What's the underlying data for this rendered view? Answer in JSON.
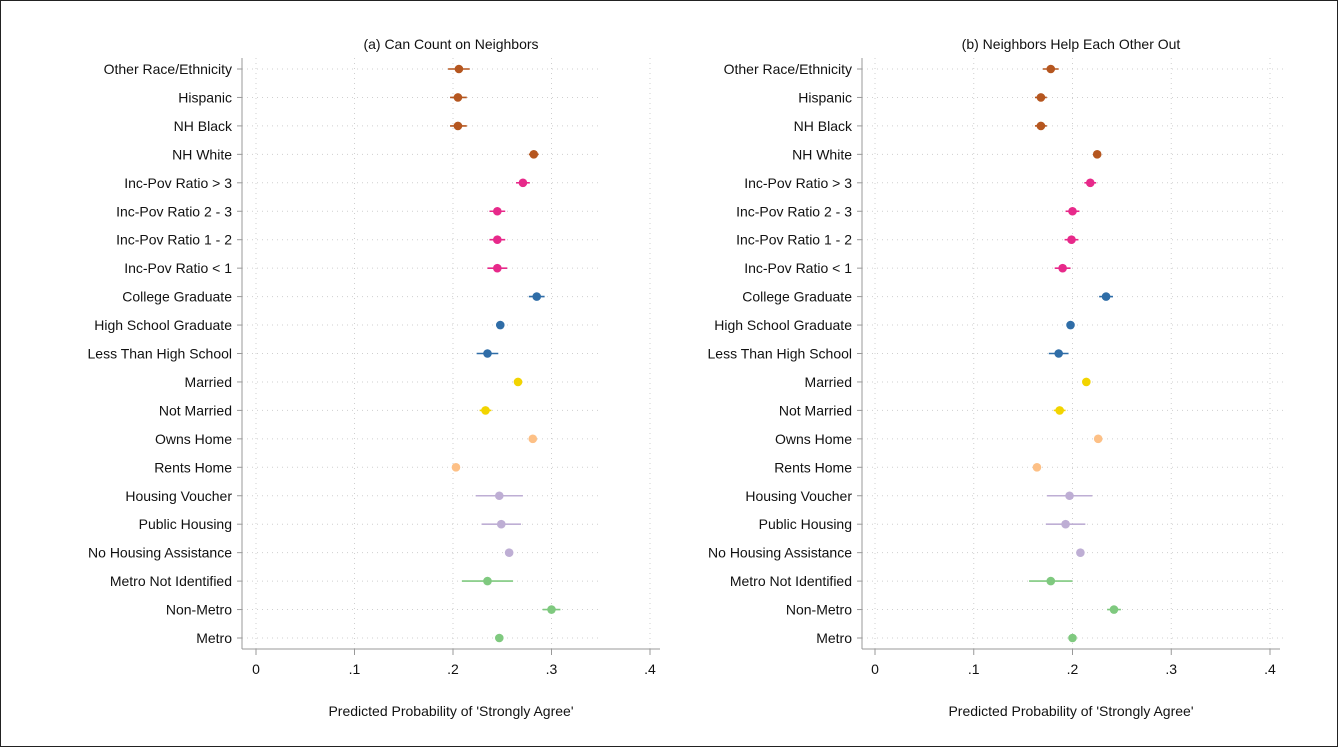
{
  "chart_data": [
    {
      "type": "scatter",
      "title": "(a) Can Count on Neighbors",
      "xlabel": "Predicted Probability of 'Strongly Agree'",
      "ylabel": "",
      "xlim": [
        0,
        0.4
      ],
      "xticks": [
        0,
        0.1,
        0.2,
        0.3,
        0.4
      ],
      "xtick_labels": [
        "0",
        ".1",
        ".2",
        ".3",
        ".4"
      ],
      "grid": true,
      "categories": [
        "Other Race/Ethnicity",
        "Hispanic",
        "NH Black",
        "NH White",
        "Inc-Pov Ratio > 3",
        "Inc-Pov Ratio 2 - 3",
        "Inc-Pov Ratio 1 - 2",
        "Inc-Pov Ratio < 1",
        "College Graduate",
        "High School Graduate",
        "Less Than High School",
        "Married",
        "Not Married",
        "Owns Home",
        "Rents Home",
        "Housing Voucher",
        "Public Housing",
        "No Housing Assistance",
        "Metro Not Identified",
        "Non-Metro",
        "Metro"
      ],
      "values": [
        0.206,
        0.205,
        0.205,
        0.282,
        0.271,
        0.245,
        0.245,
        0.245,
        0.285,
        0.248,
        0.235,
        0.266,
        0.233,
        0.281,
        0.203,
        0.247,
        0.249,
        0.257,
        0.235,
        0.3,
        0.247
      ],
      "ci_low": [
        0.195,
        0.197,
        0.197,
        0.277,
        0.264,
        0.237,
        0.237,
        0.235,
        0.277,
        0.244,
        0.224,
        0.263,
        0.227,
        0.277,
        0.199,
        0.223,
        0.229,
        0.253,
        0.209,
        0.291,
        0.243
      ],
      "ci_high": [
        0.217,
        0.214,
        0.214,
        0.287,
        0.278,
        0.253,
        0.253,
        0.255,
        0.293,
        0.252,
        0.246,
        0.269,
        0.239,
        0.285,
        0.207,
        0.271,
        0.269,
        0.261,
        0.261,
        0.309,
        0.251
      ],
      "point_colors": [
        "#b5561f",
        "#b5561f",
        "#b5561f",
        "#b5561f",
        "#e7298a",
        "#e7298a",
        "#e7298a",
        "#e7298a",
        "#2f6da7",
        "#2f6da7",
        "#2f6da7",
        "#f2d400",
        "#f2d400",
        "#fdc086",
        "#fdc086",
        "#beaed4",
        "#beaed4",
        "#beaed4",
        "#7fc97f",
        "#7fc97f",
        "#7fc97f"
      ]
    },
    {
      "type": "scatter",
      "title": "(b) Neighbors Help Each Other Out",
      "xlabel": "Predicted Probability of 'Strongly Agree'",
      "ylabel": "",
      "xlim": [
        0,
        0.4
      ],
      "xticks": [
        0,
        0.1,
        0.2,
        0.3,
        0.4
      ],
      "xtick_labels": [
        "0",
        ".1",
        ".2",
        ".3",
        ".4"
      ],
      "grid": true,
      "categories": [
        "Other Race/Ethnicity",
        "Hispanic",
        "NH Black",
        "NH White",
        "Inc-Pov Ratio > 3",
        "Inc-Pov Ratio 2 - 3",
        "Inc-Pov Ratio 1 - 2",
        "Inc-Pov Ratio < 1",
        "College Graduate",
        "High School Graduate",
        "Less Than High School",
        "Married",
        "Not Married",
        "Owns Home",
        "Rents Home",
        "Housing Voucher",
        "Public Housing",
        "No Housing Assistance",
        "Metro Not Identified",
        "Non-Metro",
        "Metro"
      ],
      "values": [
        0.178,
        0.168,
        0.168,
        0.225,
        0.218,
        0.2,
        0.199,
        0.19,
        0.234,
        0.198,
        0.186,
        0.214,
        0.187,
        0.226,
        0.164,
        0.197,
        0.193,
        0.208,
        0.178,
        0.242,
        0.2
      ],
      "ci_low": [
        0.17,
        0.162,
        0.162,
        0.221,
        0.212,
        0.193,
        0.192,
        0.182,
        0.227,
        0.194,
        0.176,
        0.211,
        0.181,
        0.222,
        0.16,
        0.174,
        0.173,
        0.204,
        0.156,
        0.235,
        0.196
      ],
      "ci_high": [
        0.186,
        0.174,
        0.174,
        0.229,
        0.224,
        0.207,
        0.206,
        0.198,
        0.241,
        0.202,
        0.196,
        0.217,
        0.193,
        0.23,
        0.168,
        0.22,
        0.213,
        0.212,
        0.2,
        0.249,
        0.204
      ],
      "point_colors": [
        "#b5561f",
        "#b5561f",
        "#b5561f",
        "#b5561f",
        "#e7298a",
        "#e7298a",
        "#e7298a",
        "#e7298a",
        "#2f6da7",
        "#2f6da7",
        "#2f6da7",
        "#f2d400",
        "#f2d400",
        "#fdc086",
        "#fdc086",
        "#beaed4",
        "#beaed4",
        "#beaed4",
        "#7fc97f",
        "#7fc97f",
        "#7fc97f"
      ]
    }
  ]
}
